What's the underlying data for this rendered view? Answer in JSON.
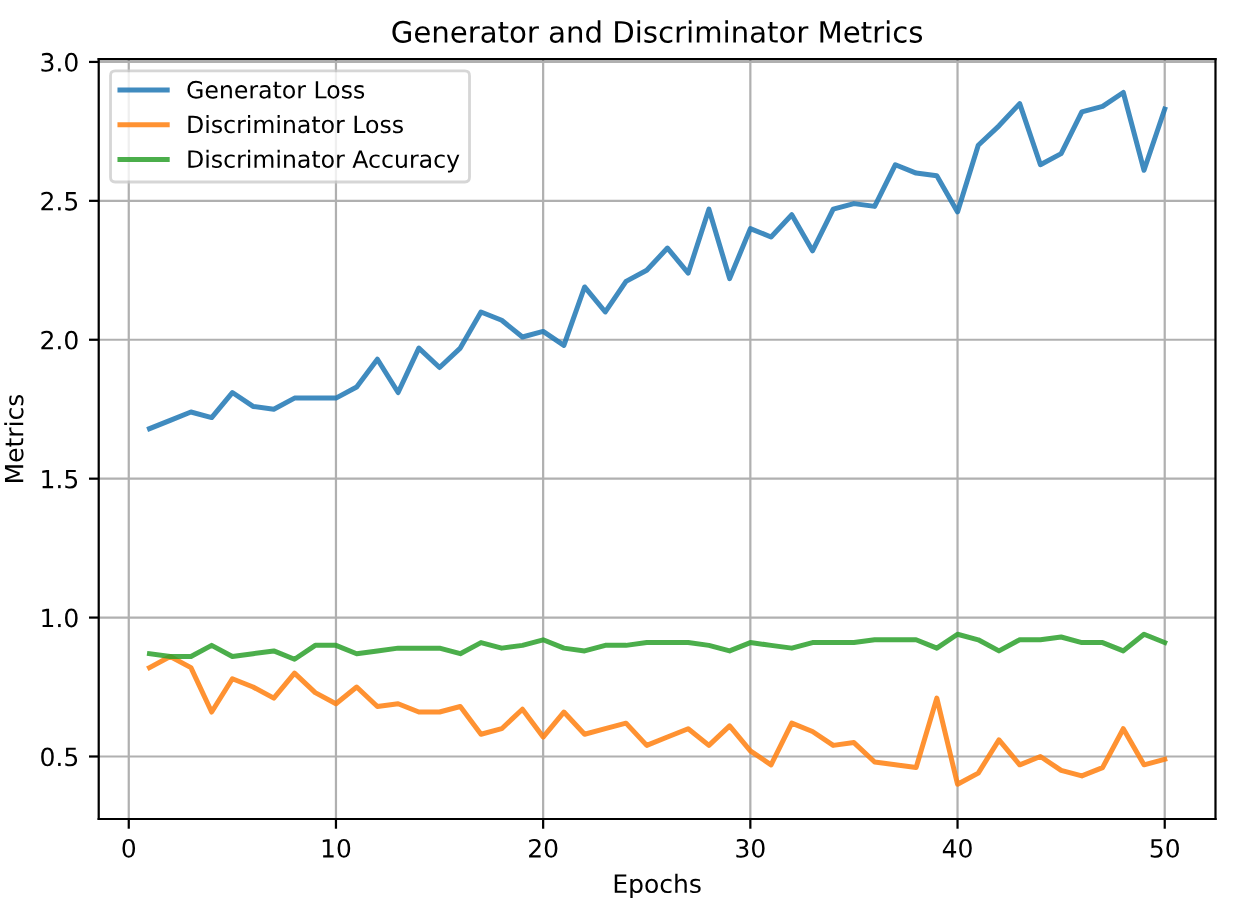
{
  "chart_data": {
    "type": "line",
    "title": "Generator and Discriminator Metrics",
    "xlabel": "Epochs",
    "ylabel": "Metrics",
    "x": [
      1,
      2,
      3,
      4,
      5,
      6,
      7,
      8,
      9,
      10,
      11,
      12,
      13,
      14,
      15,
      16,
      17,
      18,
      19,
      20,
      21,
      22,
      23,
      24,
      25,
      26,
      27,
      28,
      29,
      30,
      31,
      32,
      33,
      34,
      35,
      36,
      37,
      38,
      39,
      40,
      41,
      42,
      43,
      44,
      45,
      46,
      47,
      48,
      49,
      50
    ],
    "series": [
      {
        "name": "Generator Loss",
        "color": "#1f77b4",
        "values": [
          1.68,
          1.71,
          1.74,
          1.72,
          1.81,
          1.76,
          1.75,
          1.79,
          1.79,
          1.79,
          1.83,
          1.93,
          1.81,
          1.97,
          1.9,
          1.97,
          2.1,
          2.07,
          2.01,
          2.03,
          1.98,
          2.19,
          2.1,
          2.21,
          2.25,
          2.33,
          2.24,
          2.47,
          2.22,
          2.4,
          2.37,
          2.45,
          2.32,
          2.47,
          2.49,
          2.48,
          2.63,
          2.6,
          2.59,
          2.46,
          2.7,
          2.77,
          2.85,
          2.63,
          2.67,
          2.82,
          2.84,
          2.89,
          2.61,
          2.83
        ]
      },
      {
        "name": "Discriminator Loss",
        "color": "#ff7f0e",
        "values": [
          0.82,
          0.86,
          0.82,
          0.66,
          0.78,
          0.75,
          0.71,
          0.8,
          0.73,
          0.69,
          0.75,
          0.68,
          0.69,
          0.66,
          0.66,
          0.68,
          0.58,
          0.6,
          0.67,
          0.57,
          0.66,
          0.58,
          0.6,
          0.62,
          0.54,
          0.57,
          0.6,
          0.54,
          0.61,
          0.52,
          0.47,
          0.62,
          0.59,
          0.54,
          0.55,
          0.48,
          0.47,
          0.46,
          0.71,
          0.4,
          0.44,
          0.56,
          0.47,
          0.5,
          0.45,
          0.43,
          0.46,
          0.6,
          0.47,
          0.49
        ]
      },
      {
        "name": "Discriminator Accuracy",
        "color": "#2ca02c",
        "values": [
          0.87,
          0.86,
          0.86,
          0.9,
          0.86,
          0.87,
          0.88,
          0.85,
          0.9,
          0.9,
          0.87,
          0.88,
          0.89,
          0.89,
          0.89,
          0.87,
          0.91,
          0.89,
          0.9,
          0.92,
          0.89,
          0.88,
          0.9,
          0.9,
          0.91,
          0.91,
          0.91,
          0.9,
          0.88,
          0.91,
          0.9,
          0.89,
          0.91,
          0.91,
          0.91,
          0.92,
          0.92,
          0.92,
          0.89,
          0.94,
          0.92,
          0.88,
          0.92,
          0.92,
          0.93,
          0.91,
          0.91,
          0.88,
          0.94,
          0.91
        ]
      }
    ],
    "xlim": [
      -1.45,
      52.45
    ],
    "ylim": [
      0.275,
      3.01
    ],
    "xticks": [
      0,
      10,
      20,
      30,
      40,
      50
    ],
    "yticks": [
      {
        "value": 0.5,
        "label": "0.5"
      },
      {
        "value": 1.0,
        "label": "1.0"
      },
      {
        "value": 1.5,
        "label": "1.5"
      },
      {
        "value": 2.0,
        "label": "2.0"
      },
      {
        "value": 2.5,
        "label": "2.5"
      },
      {
        "value": 3.0,
        "label": "3.0"
      }
    ],
    "grid": true,
    "legend": "top left",
    "marker": "none",
    "line_style": "solid"
  }
}
